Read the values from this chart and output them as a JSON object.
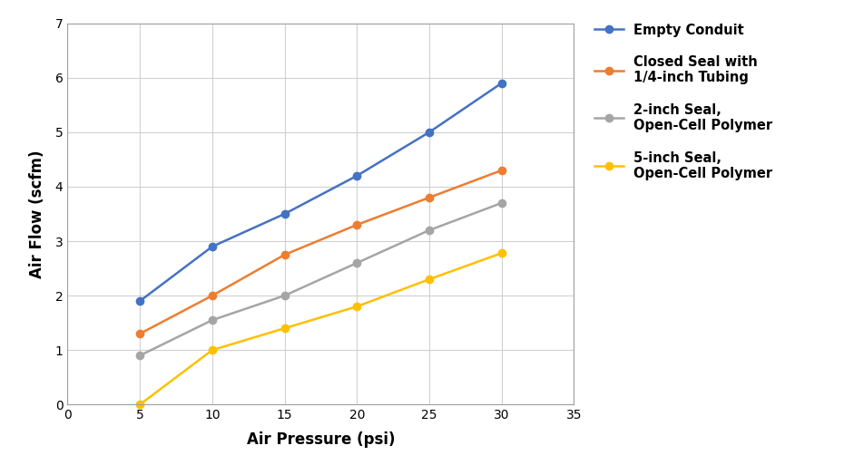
{
  "x": [
    5,
    10,
    15,
    20,
    25,
    30
  ],
  "series": [
    {
      "label": "Empty Conduit",
      "color": "#4472C4",
      "y": [
        1.9,
        2.9,
        3.5,
        4.2,
        5.0,
        5.9
      ]
    },
    {
      "label": "Closed Seal with\n1/4-inch Tubing",
      "color": "#ED7D31",
      "y": [
        1.3,
        2.0,
        2.75,
        3.3,
        3.8,
        4.3
      ]
    },
    {
      "label": "2-inch Seal,\nOpen-Cell Polymer",
      "color": "#A5A5A5",
      "y": [
        0.9,
        1.55,
        2.0,
        2.6,
        3.2,
        3.7
      ]
    },
    {
      "label": "5-inch Seal,\nOpen-Cell Polymer",
      "color": "#FFC000",
      "y": [
        0.0,
        1.0,
        1.4,
        1.8,
        2.3,
        2.78
      ]
    }
  ],
  "xlabel": "Air Pressure (psi)",
  "ylabel": "Air Flow (scfm)",
  "xlim": [
    0,
    35
  ],
  "ylim": [
    0,
    7
  ],
  "xticks": [
    0,
    5,
    10,
    15,
    20,
    25,
    30,
    35
  ],
  "yticks": [
    0,
    1,
    2,
    3,
    4,
    5,
    6,
    7
  ],
  "background_color": "#FFFFFF",
  "plot_bg_color": "#FFFFFF",
  "grid_color": "#D0D0D0",
  "marker": "o",
  "markersize": 6,
  "linewidth": 1.8,
  "legend_fontsize": 10.5,
  "axis_label_fontsize": 12,
  "tick_fontsize": 10
}
